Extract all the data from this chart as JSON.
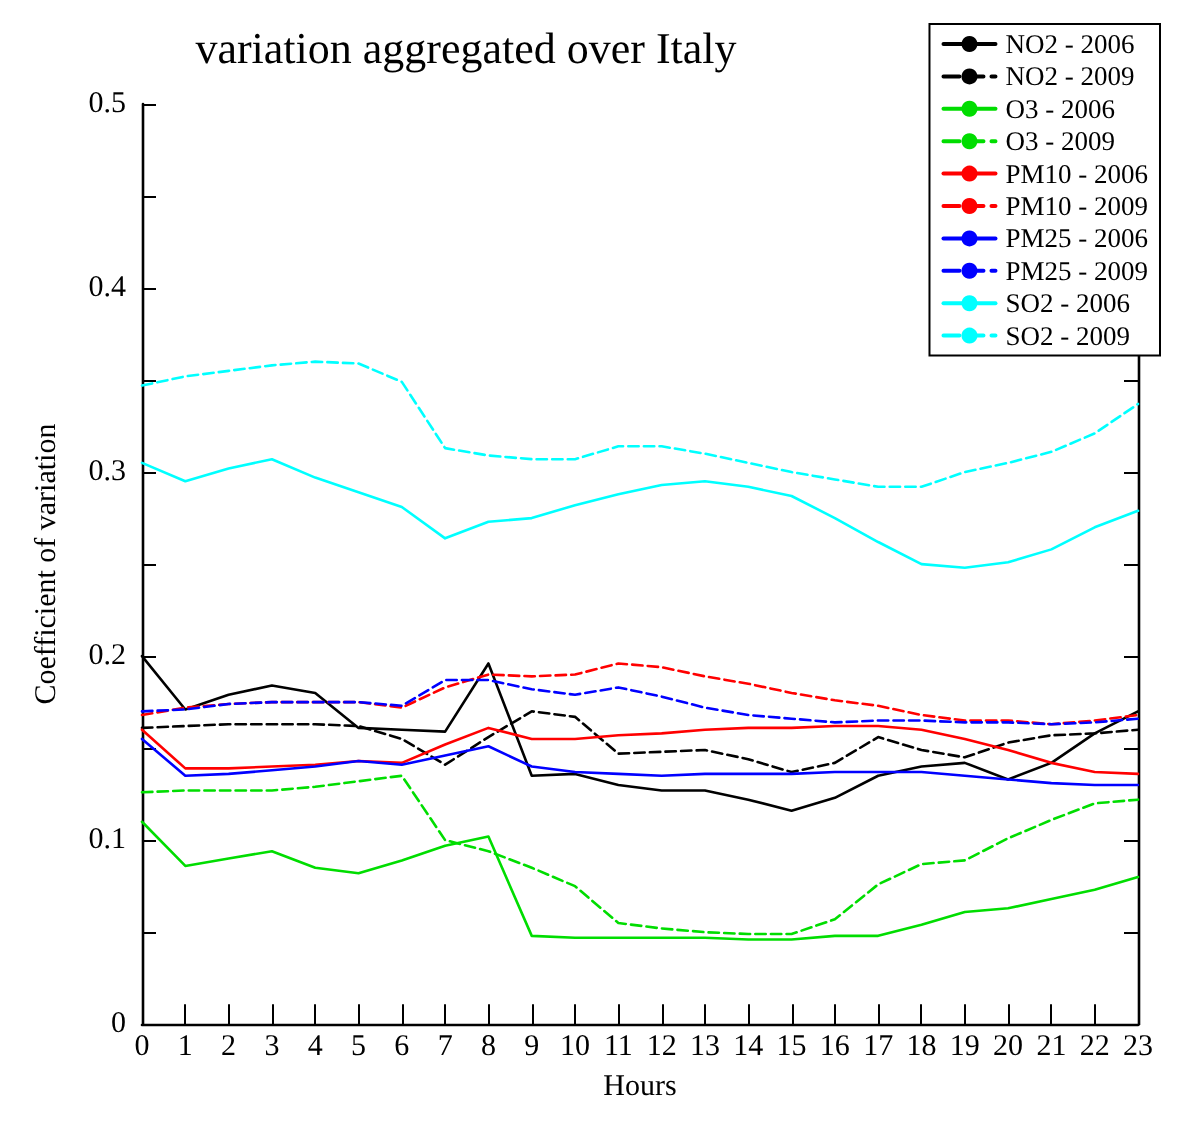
{
  "chart_data": {
    "type": "line",
    "title": "variation aggregated over Italy",
    "xlabel": "Hours",
    "ylabel": "Coefficient of variation",
    "x": [
      0,
      1,
      2,
      3,
      4,
      5,
      6,
      7,
      8,
      9,
      10,
      11,
      12,
      13,
      14,
      15,
      16,
      17,
      18,
      19,
      20,
      21,
      22,
      23
    ],
    "xlim": [
      0,
      23
    ],
    "xticks": [
      0,
      1,
      2,
      3,
      4,
      5,
      6,
      7,
      8,
      9,
      10,
      11,
      12,
      13,
      14,
      15,
      16,
      17,
      18,
      19,
      20,
      21,
      22,
      23
    ],
    "ylim": [
      0,
      0.5
    ],
    "yticks": [
      0,
      {
        "value": 0.05,
        "label": null
      },
      0.1,
      {
        "value": 0.15,
        "label": null
      },
      0.2,
      {
        "value": 0.25,
        "label": null
      },
      0.3,
      {
        "value": 0.35,
        "label": null
      },
      0.4,
      {
        "value": 0.45,
        "label": null
      },
      0.5
    ],
    "grid": false,
    "legend": "top right",
    "marker": "none",
    "series": [
      {
        "name": "NO2 - 2006",
        "color": "#000000",
        "line_style": "solid",
        "values": [
          0.2,
          0.171,
          0.179,
          0.184,
          0.18,
          0.161,
          0.16,
          0.159,
          0.196,
          0.135,
          0.136,
          0.13,
          0.127,
          0.127,
          0.122,
          0.116,
          0.123,
          0.135,
          0.14,
          0.142,
          0.133,
          0.142,
          0.158,
          0.17
        ]
      },
      {
        "name": "NO2 - 2009",
        "color": "#000000",
        "line_style": "dashed",
        "values": [
          0.161,
          0.162,
          0.163,
          0.163,
          0.163,
          0.162,
          0.155,
          0.141,
          0.156,
          0.17,
          0.167,
          0.147,
          0.148,
          0.149,
          0.144,
          0.137,
          0.142,
          0.156,
          0.149,
          0.145,
          0.153,
          0.157,
          0.158,
          0.16
        ]
      },
      {
        "name": "O3 - 2006",
        "color": "#00dd00",
        "line_style": "solid",
        "values": [
          0.11,
          0.086,
          0.09,
          0.094,
          0.085,
          0.082,
          0.089,
          0.097,
          0.102,
          0.048,
          0.047,
          0.047,
          0.047,
          0.047,
          0.046,
          0.046,
          0.048,
          0.048,
          0.054,
          0.061,
          0.063,
          0.068,
          0.073,
          0.08
        ]
      },
      {
        "name": "O3 - 2009",
        "color": "#00dd00",
        "line_style": "dashed",
        "values": [
          0.126,
          0.127,
          0.127,
          0.127,
          0.129,
          0.132,
          0.135,
          0.1,
          0.094,
          0.085,
          0.075,
          0.055,
          0.052,
          0.05,
          0.049,
          0.049,
          0.057,
          0.076,
          0.087,
          0.089,
          0.101,
          0.111,
          0.12,
          0.122
        ]
      },
      {
        "name": "PM10 - 2006",
        "color": "#ff0000",
        "line_style": "solid",
        "values": [
          0.16,
          0.139,
          0.139,
          0.14,
          0.141,
          0.143,
          0.142,
          0.152,
          0.161,
          0.155,
          0.155,
          0.157,
          0.158,
          0.16,
          0.161,
          0.161,
          0.162,
          0.162,
          0.16,
          0.155,
          0.149,
          0.142,
          0.137,
          0.136
        ]
      },
      {
        "name": "PM10 - 2009",
        "color": "#ff0000",
        "line_style": "dashed",
        "values": [
          0.168,
          0.172,
          0.174,
          0.175,
          0.175,
          0.175,
          0.172,
          0.183,
          0.19,
          0.189,
          0.19,
          0.196,
          0.194,
          0.189,
          0.185,
          0.18,
          0.176,
          0.173,
          0.168,
          0.165,
          0.165,
          0.163,
          0.165,
          0.168
        ]
      },
      {
        "name": "PM25 - 2006",
        "color": "#0000ff",
        "line_style": "solid",
        "values": [
          0.155,
          0.135,
          0.136,
          0.138,
          0.14,
          0.143,
          0.141,
          0.146,
          0.151,
          0.14,
          0.137,
          0.136,
          0.135,
          0.136,
          0.136,
          0.136,
          0.137,
          0.137,
          0.137,
          0.135,
          0.133,
          0.131,
          0.13,
          0.13
        ]
      },
      {
        "name": "PM25 - 2009",
        "color": "#0000ff",
        "line_style": "dashed",
        "values": [
          0.17,
          0.171,
          0.174,
          0.175,
          0.175,
          0.175,
          0.173,
          0.187,
          0.187,
          0.182,
          0.179,
          0.183,
          0.178,
          0.172,
          0.168,
          0.166,
          0.164,
          0.165,
          0.165,
          0.164,
          0.164,
          0.163,
          0.164,
          0.166
        ]
      },
      {
        "name": "SO2 - 2006",
        "color": "#00ffff",
        "line_style": "solid",
        "values": [
          0.305,
          0.295,
          0.302,
          0.307,
          0.297,
          0.289,
          0.281,
          0.264,
          0.273,
          0.275,
          0.282,
          0.288,
          0.293,
          0.295,
          0.292,
          0.287,
          0.275,
          0.262,
          0.25,
          0.248,
          0.251,
          0.258,
          0.27,
          0.279
        ]
      },
      {
        "name": "SO2 - 2009",
        "color": "#00ffff",
        "line_style": "dashed",
        "values": [
          0.347,
          0.352,
          0.355,
          0.358,
          0.36,
          0.359,
          0.349,
          0.313,
          0.309,
          0.307,
          0.307,
          0.314,
          0.314,
          0.31,
          0.305,
          0.3,
          0.296,
          0.292,
          0.292,
          0.3,
          0.305,
          0.311,
          0.321,
          0.337
        ]
      }
    ]
  }
}
